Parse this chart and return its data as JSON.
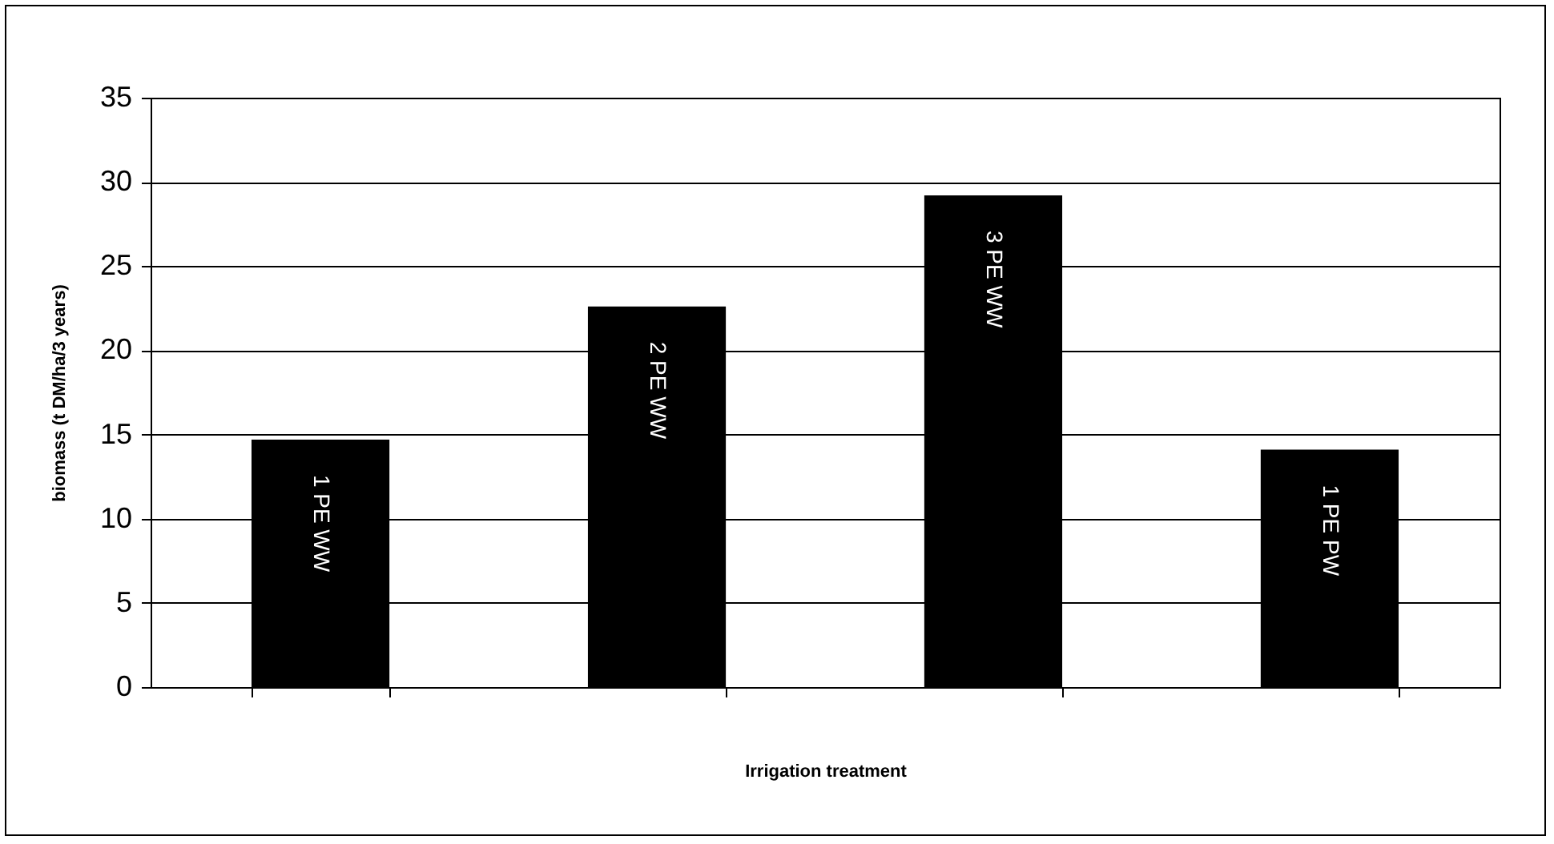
{
  "chart_data": {
    "type": "bar",
    "xlabel": "Irrigation treatment",
    "ylabel": "biomass (t DM/ha/3 years)",
    "categories": [
      "1 PE WW",
      "2 PE WW",
      "3 PE WW",
      "1 PE PW"
    ],
    "values": [
      14.7,
      22.6,
      29.2,
      14.1
    ],
    "color": "#000000",
    "ylim": [
      0,
      35
    ],
    "yticks": [
      0,
      5,
      10,
      15,
      20,
      25,
      30,
      35
    ],
    "grid": "y",
    "tick_labels": "y"
  }
}
